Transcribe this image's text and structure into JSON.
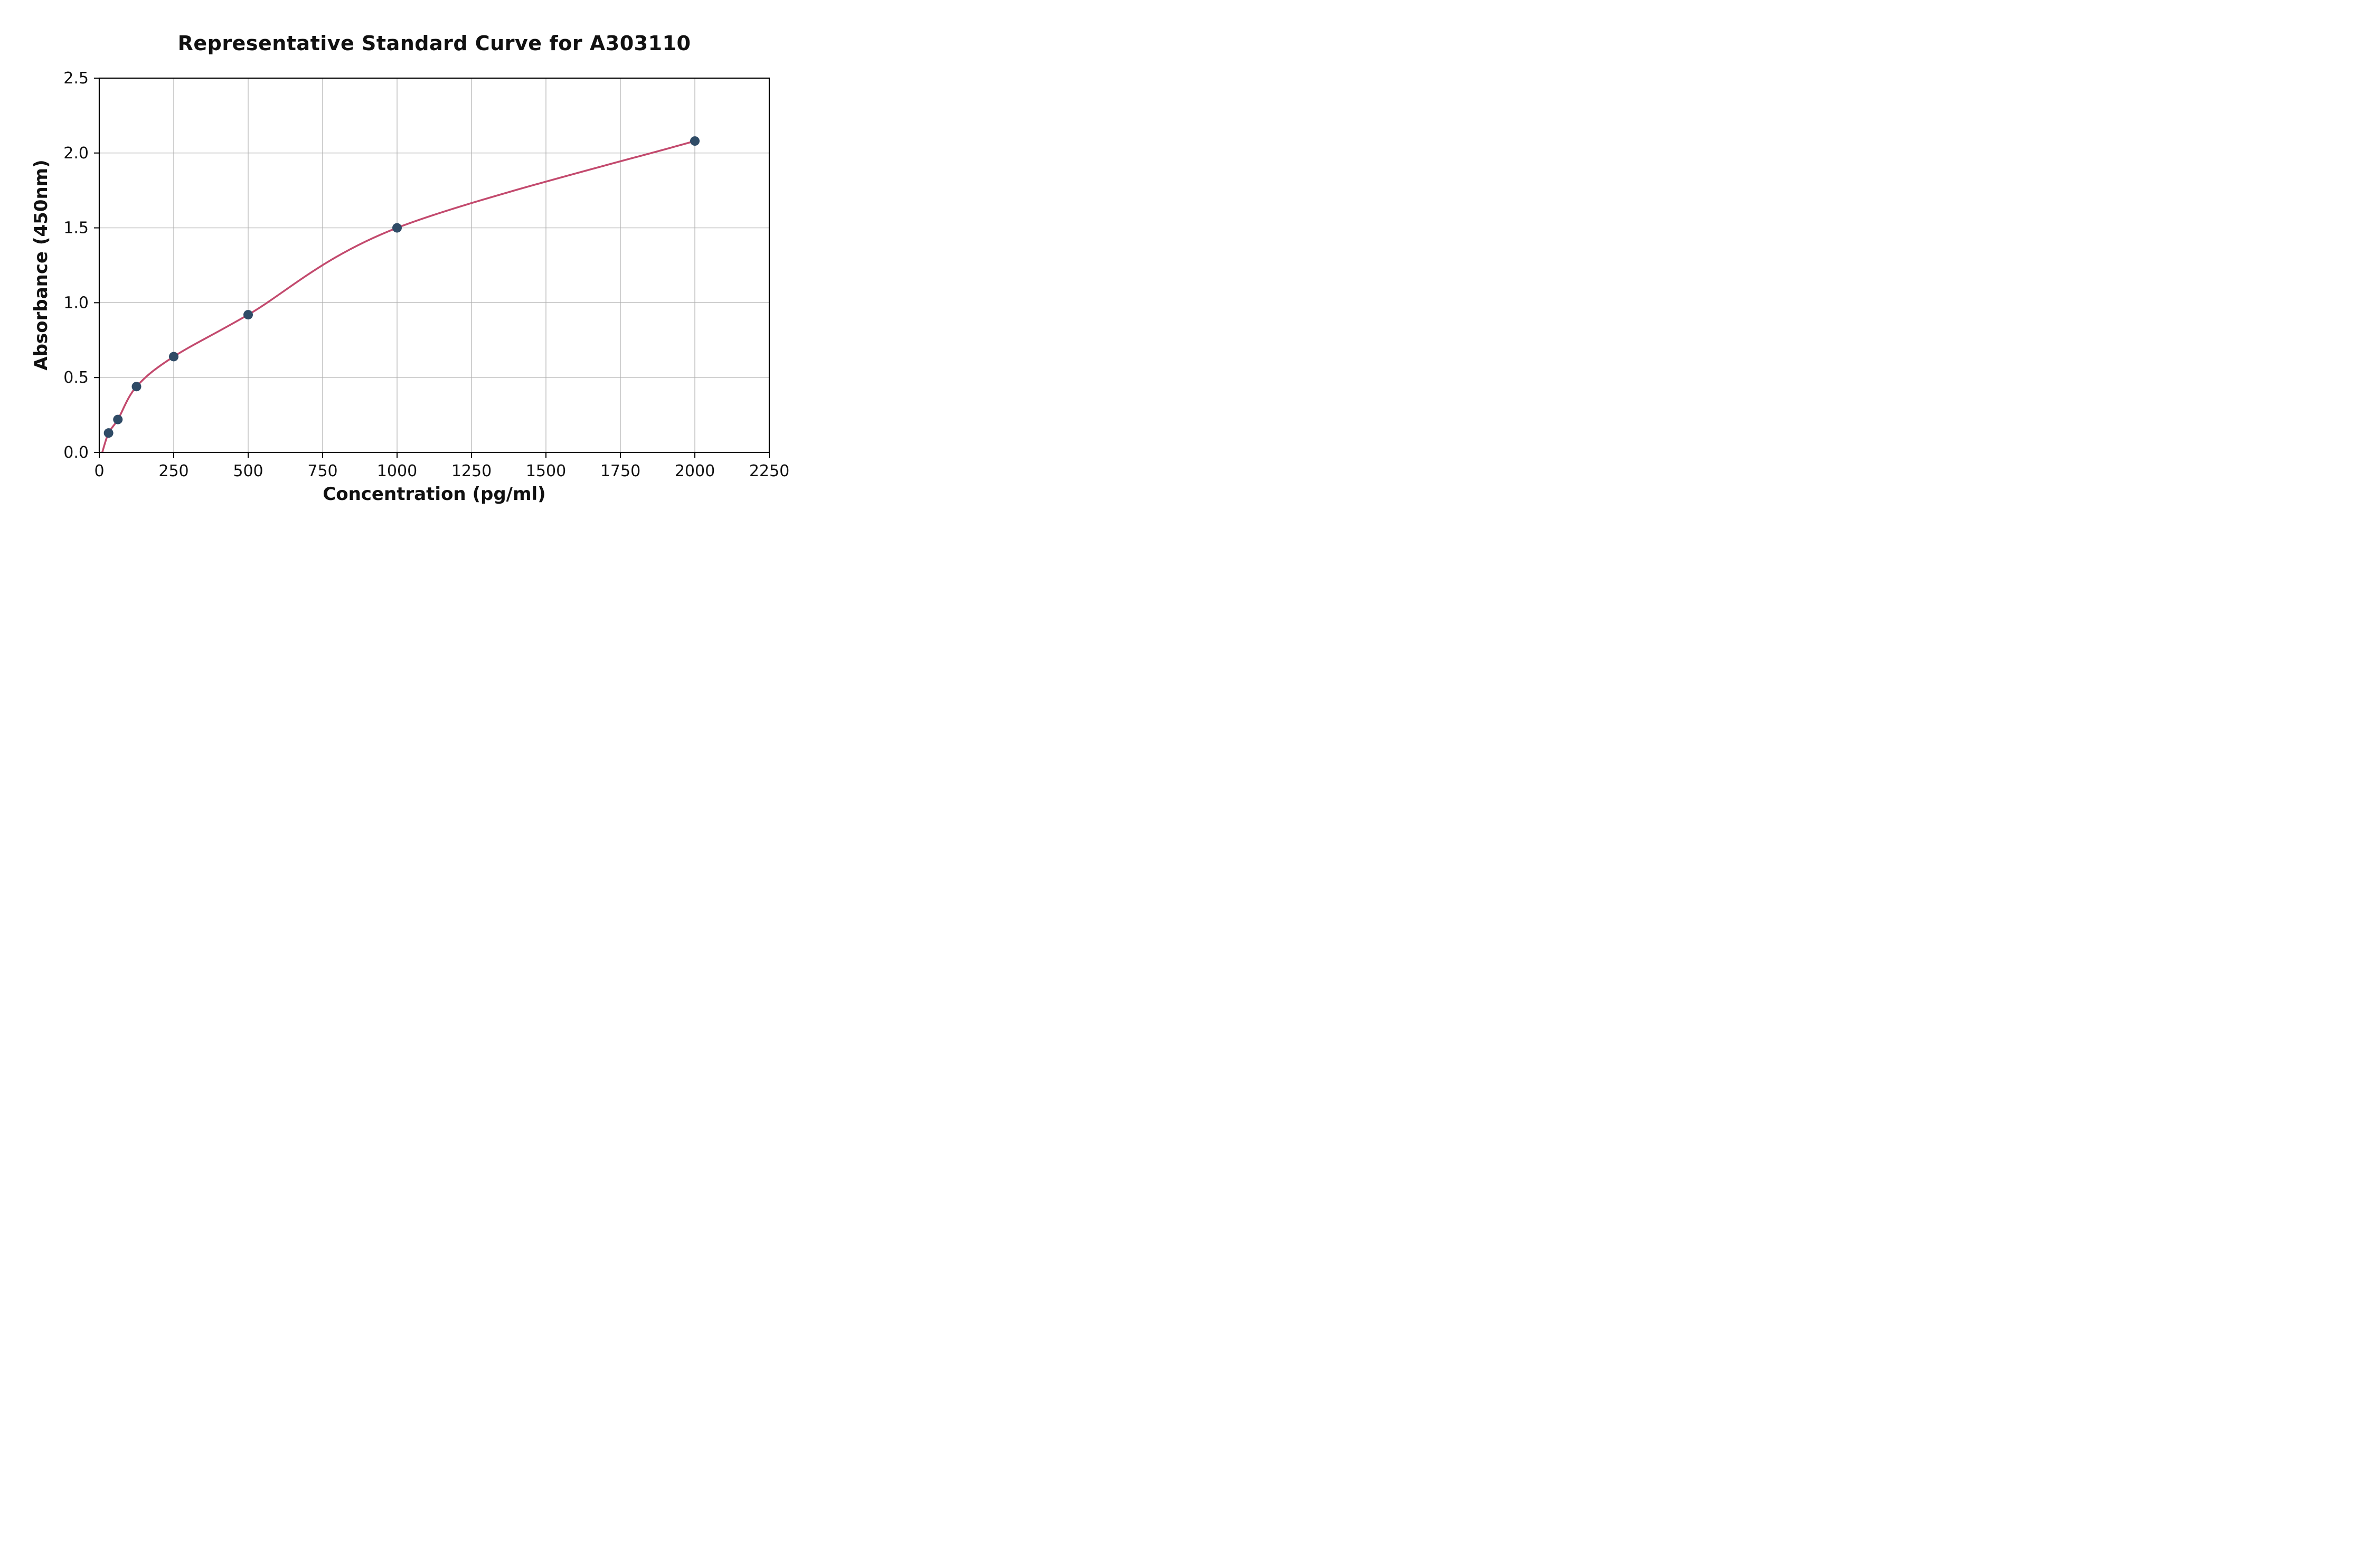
{
  "chart_data": {
    "type": "line",
    "title": "Representative Standard Curve for A303110",
    "xlabel": "Concentration (pg/ml)",
    "ylabel": "Absorbance (450nm)",
    "xlim": [
      0,
      2250
    ],
    "ylim": [
      0,
      2.5
    ],
    "xticks": [
      0,
      250,
      500,
      750,
      1000,
      1250,
      1500,
      1750,
      2000,
      2250
    ],
    "yticks": [
      0.0,
      0.5,
      1.0,
      1.5,
      2.0,
      2.5
    ],
    "grid": true,
    "legend_position": "none",
    "series": [
      {
        "name": "standard-curve",
        "x": [
          31.25,
          62.5,
          125,
          250,
          500,
          1000,
          2000
        ],
        "y": [
          0.13,
          0.22,
          0.44,
          0.64,
          0.92,
          1.5,
          2.08
        ]
      }
    ],
    "curve_start": {
      "x": 10,
      "y": 0.0
    },
    "colors": {
      "curve": "#c34a6e",
      "marker": "#2f4b66",
      "grid": "#b0b0b0",
      "axis": "#000000",
      "text": "#111111",
      "background": "#ffffff"
    }
  }
}
